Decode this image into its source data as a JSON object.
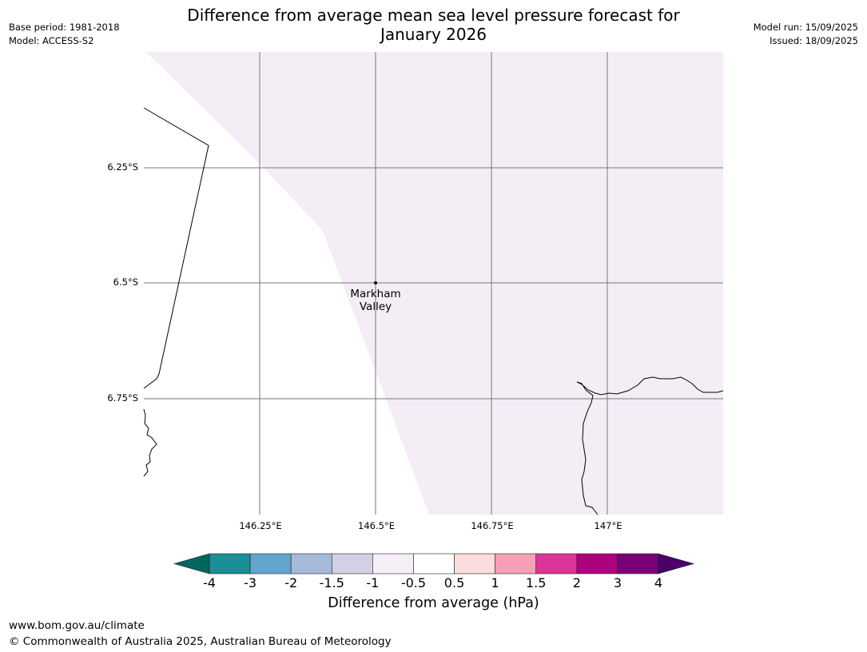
{
  "header": {
    "title_line1": "Difference from average mean sea level pressure forecast for",
    "title_line2": "January 2026",
    "base_period": "Base period: 1981-2018",
    "model": "Model: ACCESS-S2",
    "model_run": "Model run: 15/09/2025",
    "issued": "Issued: 18/09/2025"
  },
  "map": {
    "lat_labels": [
      "6.25°S",
      "6.5°S",
      "6.75°S"
    ],
    "lon_labels": [
      "146.25°E",
      "146.5°E",
      "146.75°E",
      "147°E"
    ],
    "place": {
      "line1": "Markham",
      "line2": "Valley"
    }
  },
  "legend": {
    "label": "Difference from average (hPa)",
    "ticks": [
      "-4",
      "-3",
      "-2",
      "-1.5",
      "-1",
      "-0.5",
      "0.5",
      "1",
      "1.5",
      "2",
      "3",
      "4"
    ],
    "colors": {
      "below_min": "#01665e",
      "bins": [
        "#1a8f96",
        "#62a5cf",
        "#a6b9db",
        "#d2d0e4",
        "#f5eef7",
        "#ffffff",
        "#fcdcdc",
        "#f79fb7",
        "#dd3497",
        "#ae017e",
        "#7a0177"
      ],
      "above_max": "#49006a"
    }
  },
  "footer": {
    "url": "www.bom.gov.au/climate",
    "copyright": "© Commonwealth of Australia 2025, Australian Bureau of Meteorology"
  }
}
